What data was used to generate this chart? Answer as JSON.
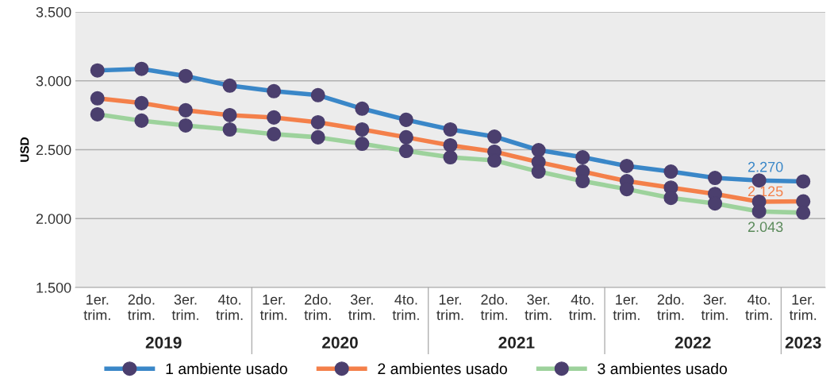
{
  "chart_data": {
    "type": "line",
    "ylabel": "USD",
    "categories": [
      "1er.\ntrim.",
      "2do.\ntrim.",
      "3er.\ntrim.",
      "4to.\ntrim.",
      "1er.\ntrim.",
      "2do.\ntrim.",
      "3er.\ntrim.",
      "4to.\ntrim.",
      "1er.\ntrim.",
      "2do.\ntrim.",
      "3er.\ntrim.",
      "4to.\ntrim.",
      "1er.\ntrim.",
      "2do.\ntrim.",
      "3er.\ntrim.",
      "4to.\ntrim.",
      "1er.\ntrim."
    ],
    "series": [
      {
        "name": "1 ambiente usado",
        "color": "#3a87c8",
        "values": [
          3075,
          3087,
          3035,
          2965,
          2925,
          2896,
          2798,
          2717,
          2647,
          2595,
          2497,
          2445,
          2382,
          2341,
          2295,
          2277,
          2270
        ],
        "value_labels": [
          null,
          null,
          null,
          null,
          null,
          null,
          null,
          null,
          null,
          null,
          null,
          null,
          null,
          null,
          null,
          null,
          "2.270"
        ]
      },
      {
        "name": "2 ambientes usado",
        "color": "#f4804a",
        "values": [
          2873,
          2838,
          2786,
          2751,
          2734,
          2699,
          2647,
          2590,
          2532,
          2486,
          2410,
          2341,
          2272,
          2225,
          2179,
          2123,
          2125
        ],
        "value_labels": [
          null,
          null,
          null,
          null,
          null,
          null,
          null,
          null,
          null,
          null,
          null,
          null,
          null,
          null,
          null,
          null,
          "2.125"
        ]
      },
      {
        "name": "3 ambientes usado",
        "color": "#9dd29c",
        "values": [
          2757,
          2711,
          2676,
          2647,
          2613,
          2590,
          2543,
          2491,
          2445,
          2422,
          2341,
          2272,
          2214,
          2150,
          2110,
          2052,
          2043
        ],
        "value_labels": [
          null,
          null,
          null,
          null,
          null,
          null,
          null,
          null,
          null,
          null,
          null,
          null,
          null,
          null,
          null,
          null,
          "2.043"
        ]
      }
    ],
    "annotations": [
      "2019",
      "2020",
      "2021",
      "2022",
      "2023"
    ],
    "ylim": [
      1500,
      3500
    ],
    "yticks": [
      {
        "value": 1500,
        "label": "1.500"
      },
      {
        "value": 2000,
        "label": "2.000"
      },
      {
        "value": 2500,
        "label": "2.500"
      },
      {
        "value": 3000,
        "label": "3.000"
      },
      {
        "value": 3500,
        "label": "3.500"
      }
    ],
    "grid": "y",
    "legend": "bottom",
    "marker": "circle",
    "line_style": "solid"
  }
}
